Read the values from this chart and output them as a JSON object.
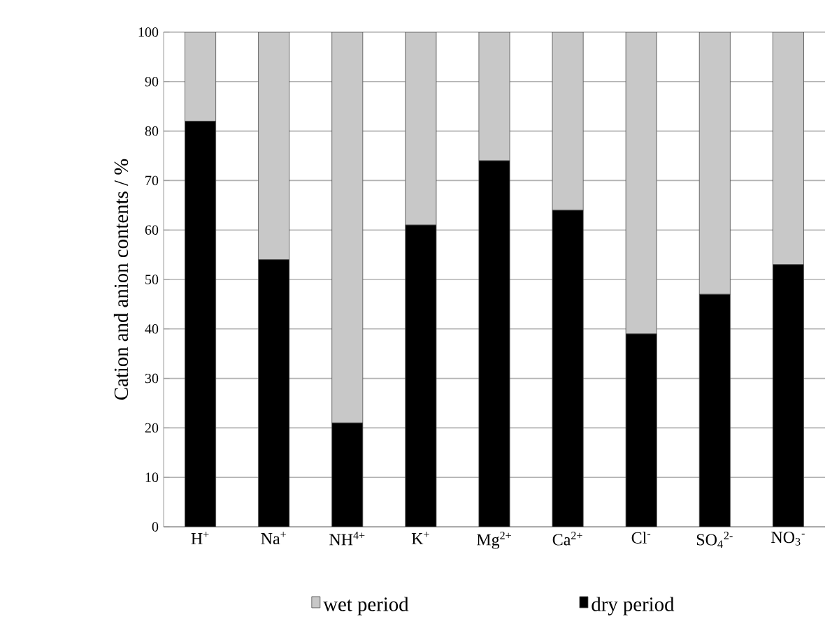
{
  "chart_data": {
    "type": "bar",
    "stacked": true,
    "ylabel": "Cation and anion contents / %",
    "categories": [
      "H$^{+}$",
      "Na$^{+}$",
      "NH$^{4+}$",
      "K$^{+}$",
      "Mg$^{2+}$",
      "Ca$^{2+}$",
      "Cl$^{-}$",
      "SO$_{4}$$^{2-}$",
      "NO$_{3}$$^{-}$"
    ],
    "series": [
      {
        "name": "dry period",
        "color": "#000000",
        "values": [
          82,
          54,
          21,
          61,
          74,
          64,
          39,
          47,
          53
        ]
      },
      {
        "name": "wet period",
        "color": "#c8c8c8",
        "values": [
          18,
          46,
          79,
          39,
          26,
          36,
          61,
          53,
          47
        ]
      }
    ],
    "ylim": [
      0,
      100
    ],
    "yticks": [
      0,
      10,
      20,
      30,
      40,
      50,
      60,
      70,
      80,
      90,
      100
    ],
    "grid": "y",
    "legend": "bottom"
  }
}
